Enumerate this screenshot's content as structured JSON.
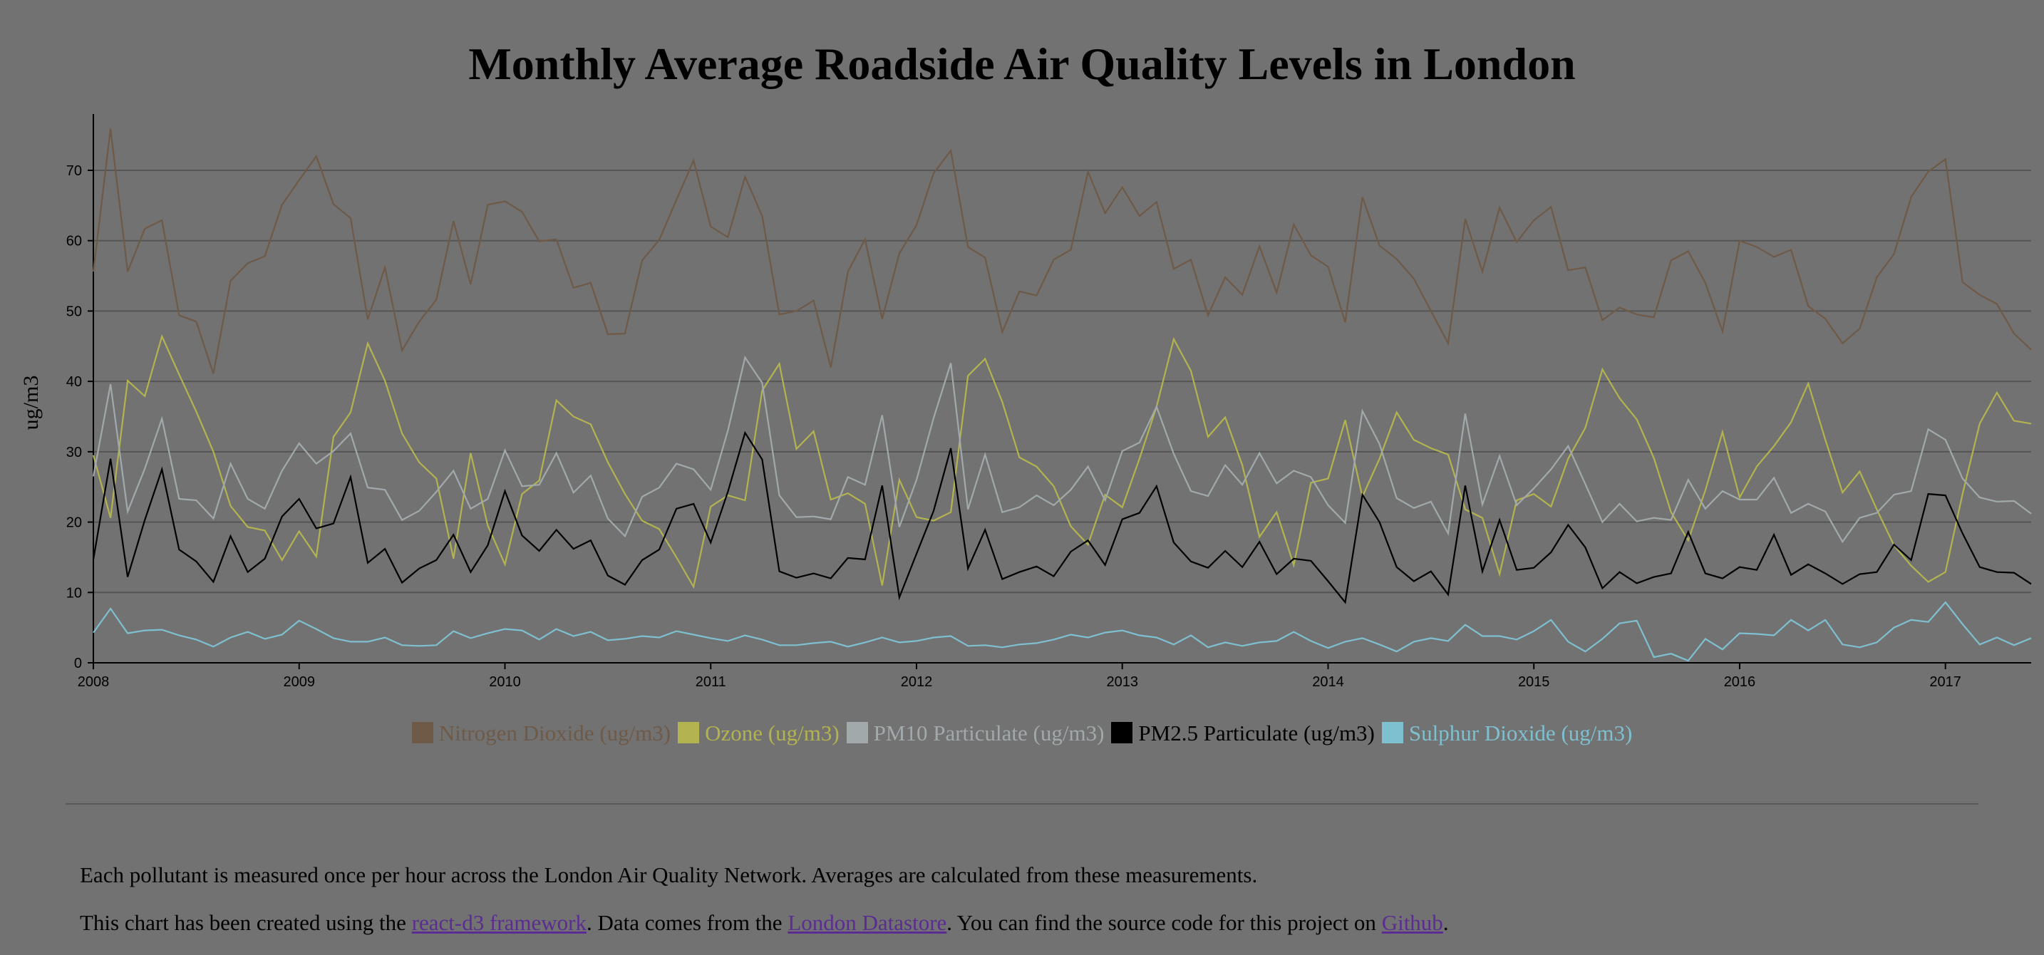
{
  "title": "Monthly Average Roadside Air Quality Levels in London",
  "footer": {
    "line1": "Each pollutant is measured once per hour across the London Air Quality Network. Averages are calculated from these measurements.",
    "line2_a": "This chart has been created using the ",
    "link_react": "react-d3 framework",
    "line2_b": ". Data comes from the ",
    "link_datastore": "London Datastore",
    "line2_c": ". You can find the source code for this project on ",
    "link_github": "Github",
    "line2_d": "."
  },
  "chart_data": {
    "type": "line",
    "ylabel": "ug/m3",
    "xlabel": "",
    "xlim": [
      2008.0,
      2017.4167
    ],
    "ylim": [
      0,
      78
    ],
    "yticks": [
      0,
      10,
      20,
      30,
      40,
      50,
      60,
      70
    ],
    "xticks": [
      "2008",
      "2009",
      "2010",
      "2011",
      "2012",
      "2013",
      "2014",
      "2015",
      "2016",
      "2017"
    ],
    "grid": true,
    "legend_position": "bottom",
    "x_start": "2008-01",
    "x_step": "1 month",
    "series": [
      {
        "name": "Nitrogen Dioxide (ug/m3)",
        "color": "#6e5a47",
        "values": [
          55.6,
          75.9,
          55.6,
          61.7,
          62.9,
          49.4,
          48.5,
          41.1,
          54.3,
          56.8,
          57.8,
          65.1,
          68.6,
          72.0,
          65.2,
          63.2,
          48.8,
          56.2,
          44.4,
          48.5,
          51.6,
          62.8,
          53.8,
          65.1,
          65.6,
          64.1,
          59.9,
          60.2,
          53.3,
          54.0,
          46.7,
          46.8,
          57.2,
          60.1,
          65.8,
          71.4,
          62.0,
          60.5,
          69.1,
          63.5,
          49.5,
          50.0,
          51.5,
          42.0,
          55.6,
          60.2,
          48.9,
          58.2,
          62.2,
          69.6,
          72.8,
          59.1,
          57.6,
          47.0,
          52.8,
          52.2,
          57.3,
          58.7,
          69.8,
          63.9,
          67.6,
          63.5,
          65.5,
          56.0,
          57.3,
          49.4,
          54.8,
          52.3,
          59.2,
          52.6,
          62.3,
          57.9,
          56.3,
          48.4,
          66.2,
          59.3,
          57.4,
          54.6,
          50.0,
          45.4,
          63.1,
          55.6,
          64.7,
          59.8,
          62.9,
          64.8,
          55.8,
          56.2,
          48.7,
          50.5,
          49.5,
          49.1,
          57.2,
          58.5,
          54.0,
          47.1,
          60.0,
          59.1,
          57.7,
          58.7,
          50.7,
          48.9,
          45.4,
          47.5,
          54.8,
          58.1,
          66.2,
          69.8,
          71.6,
          54.1,
          52.3,
          51.0,
          46.8,
          44.5
        ]
      },
      {
        "name": "Ozone (ug/m3)",
        "color": "#b3b34f",
        "values": [
          29.5,
          20.6,
          40.1,
          37.9,
          46.4,
          41.0,
          35.7,
          30.0,
          22.3,
          19.3,
          18.8,
          14.6,
          18.7,
          15.1,
          32.1,
          35.6,
          45.4,
          40.1,
          32.6,
          28.5,
          26.2,
          14.8,
          29.8,
          19.5,
          14.0,
          24.0,
          25.9,
          37.3,
          35.0,
          33.9,
          28.5,
          24.0,
          20.2,
          19.0,
          15.0,
          10.8,
          22.2,
          23.8,
          23.1,
          38.7,
          42.5,
          30.4,
          32.9,
          23.2,
          24.1,
          22.6,
          11.0,
          26.0,
          20.7,
          20.2,
          21.4,
          40.8,
          43.2,
          37.1,
          29.2,
          27.9,
          25.1,
          19.4,
          16.8,
          23.9,
          22.1,
          29.0,
          36.4,
          46.0,
          41.5,
          32.1,
          34.9,
          28.1,
          17.9,
          21.4,
          13.9,
          25.6,
          26.2,
          34.5,
          23.6,
          29.0,
          35.6,
          31.7,
          30.5,
          29.6,
          21.8,
          20.6,
          12.6,
          23.1,
          24.0,
          22.2,
          29.0,
          33.4,
          41.7,
          37.6,
          34.6,
          29.1,
          21.4,
          17.4,
          24.5,
          32.8,
          23.5,
          27.9,
          30.8,
          34.2,
          39.7,
          31.7,
          24.2,
          27.2,
          21.8,
          16.7,
          13.8,
          11.5,
          12.9,
          24.0,
          34.0,
          38.4,
          34.4,
          34.0
        ]
      },
      {
        "name": "PM10 Particulate (ug/m3)",
        "color": "#a1a9ab",
        "values": [
          26.5,
          39.6,
          21.5,
          27.6,
          34.7,
          23.3,
          23.1,
          20.5,
          28.3,
          23.3,
          21.9,
          27.3,
          31.2,
          28.3,
          30.1,
          32.6,
          24.9,
          24.6,
          20.3,
          21.6,
          24.3,
          27.3,
          21.9,
          23.3,
          30.2,
          25.1,
          25.3,
          29.8,
          24.2,
          26.6,
          20.5,
          18.0,
          23.6,
          24.9,
          28.3,
          27.5,
          24.6,
          33.0,
          43.4,
          39.8,
          23.8,
          20.7,
          20.8,
          20.4,
          26.4,
          25.3,
          35.2,
          19.3,
          26.0,
          34.8,
          42.6,
          21.8,
          29.6,
          21.4,
          22.1,
          23.8,
          22.4,
          24.6,
          27.9,
          23.1,
          30.1,
          31.3,
          36.4,
          29.7,
          24.4,
          23.7,
          28.1,
          25.3,
          29.8,
          25.5,
          27.3,
          26.4,
          22.4,
          19.9,
          35.8,
          31.1,
          23.4,
          22.0,
          22.9,
          18.4,
          35.4,
          22.5,
          29.4,
          22.4,
          24.8,
          27.5,
          30.8,
          25.4,
          20.0,
          22.6,
          20.1,
          20.6,
          20.3,
          26.0,
          21.9,
          24.4,
          23.2,
          23.2,
          26.3,
          21.3,
          22.6,
          21.5,
          17.2,
          20.6,
          21.3,
          23.9,
          24.4,
          33.2,
          31.7,
          26.2,
          23.5,
          22.9,
          23.0,
          21.2
        ]
      },
      {
        "name": "PM2.5 Particulate (ug/m3)",
        "color": "#000000",
        "values": [
          14.7,
          29.0,
          12.2,
          20.3,
          27.5,
          16.1,
          14.4,
          11.5,
          18.0,
          12.9,
          14.8,
          20.8,
          23.3,
          19.1,
          19.8,
          26.4,
          14.2,
          16.2,
          11.4,
          13.4,
          14.6,
          18.2,
          12.9,
          16.7,
          24.4,
          18.1,
          15.9,
          18.9,
          16.2,
          17.4,
          12.4,
          11.1,
          14.6,
          16.1,
          21.9,
          22.6,
          17.1,
          24.3,
          32.7,
          28.9,
          13.0,
          12.1,
          12.7,
          12.0,
          14.9,
          14.7,
          25.2,
          9.3,
          15.5,
          21.6,
          30.5,
          13.4,
          18.9,
          11.9,
          12.9,
          13.7,
          12.3,
          15.8,
          17.4,
          13.9,
          20.4,
          21.3,
          25.1,
          17.1,
          14.4,
          13.5,
          15.9,
          13.6,
          17.2,
          12.6,
          14.8,
          14.5,
          11.6,
          8.6,
          23.9,
          20.0,
          13.6,
          11.6,
          13.0,
          9.7,
          25.2,
          13.0,
          20.3,
          13.2,
          13.5,
          15.7,
          19.6,
          16.4,
          10.6,
          12.9,
          11.3,
          12.2,
          12.7,
          18.6,
          12.7,
          12.0,
          13.6,
          13.2,
          18.2,
          12.5,
          14.0,
          12.7,
          11.2,
          12.6,
          12.9,
          16.8,
          14.6,
          24.0,
          23.8,
          18.4,
          13.6,
          12.9,
          12.8,
          11.2
        ]
      },
      {
        "name": "Sulphur Dioxide (ug/m3)",
        "color": "#7ec0d0",
        "values": [
          4.3,
          7.7,
          4.2,
          4.6,
          4.7,
          3.9,
          3.3,
          2.3,
          3.6,
          4.4,
          3.4,
          4.0,
          6.0,
          4.8,
          3.5,
          3.0,
          3.0,
          3.6,
          2.5,
          2.4,
          2.5,
          4.5,
          3.5,
          4.2,
          4.8,
          4.6,
          3.3,
          4.8,
          3.8,
          4.4,
          3.2,
          3.4,
          3.8,
          3.6,
          4.5,
          4.0,
          3.5,
          3.1,
          3.9,
          3.3,
          2.5,
          2.5,
          2.8,
          3.0,
          2.3,
          2.9,
          3.6,
          2.9,
          3.1,
          3.6,
          3.8,
          2.4,
          2.5,
          2.2,
          2.6,
          2.8,
          3.3,
          4.0,
          3.6,
          4.3,
          4.6,
          3.9,
          3.6,
          2.6,
          3.9,
          2.2,
          2.9,
          2.4,
          2.9,
          3.1,
          4.4,
          3.1,
          2.1,
          3.0,
          3.5,
          2.6,
          1.6,
          3.0,
          3.5,
          3.1,
          5.4,
          3.8,
          3.8,
          3.3,
          4.5,
          6.1,
          3.0,
          1.6,
          3.4,
          5.6,
          6.0,
          0.8,
          1.3,
          0.3,
          3.4,
          1.9,
          4.2,
          4.1,
          3.9,
          6.1,
          4.6,
          6.1,
          2.6,
          2.2,
          2.9,
          5.0,
          6.1,
          5.8,
          8.6,
          5.5,
          2.6,
          3.6,
          2.5,
          3.5
        ]
      }
    ]
  }
}
